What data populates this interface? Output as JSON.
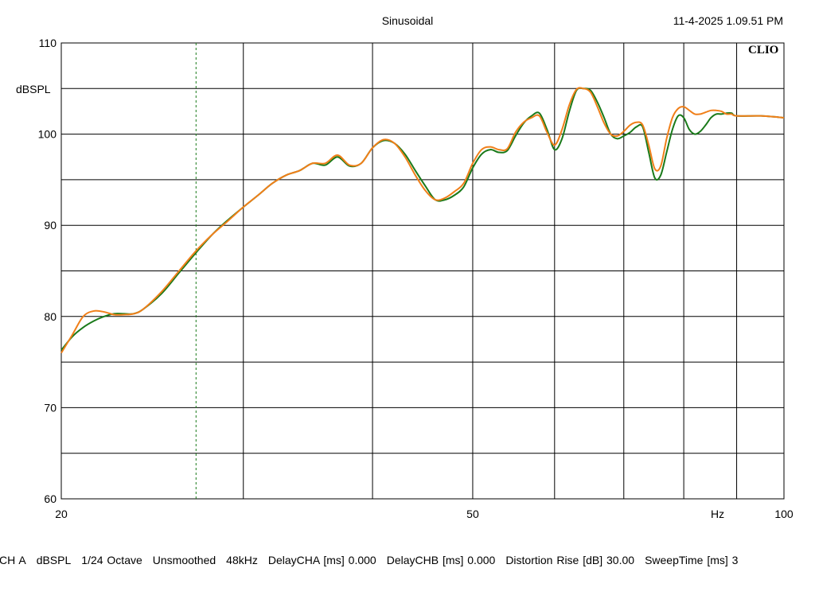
{
  "header": {
    "title": "Sinusoidal",
    "timestamp": "11-4-2025 1.09.51 PM"
  },
  "logo": "CLIO",
  "chart_data": {
    "type": "line",
    "title": "Sinusoidal",
    "ylabel": "dBSPL",
    "xlabel": "Hz",
    "x_scale": "log",
    "xlim": [
      20,
      100
    ],
    "ylim": [
      60,
      110
    ],
    "y_ticks": [
      "110",
      "100",
      "90",
      "80",
      "70",
      "60"
    ],
    "x_ticks": [
      "20",
      "50",
      "100"
    ],
    "x_unit_label": "Hz",
    "grid": true,
    "marker_x": 27,
    "series": [
      {
        "color": "#1a7a1a",
        "points": [
          [
            20,
            76.3
          ],
          [
            20.5,
            77.8
          ],
          [
            21,
            78.8
          ],
          [
            21.5,
            79.5
          ],
          [
            22,
            80.0
          ],
          [
            22.5,
            80.3
          ],
          [
            23,
            80.3
          ],
          [
            23.5,
            80.3
          ],
          [
            24,
            80.8
          ],
          [
            25,
            82.5
          ],
          [
            26,
            84.8
          ],
          [
            27,
            87.0
          ],
          [
            28,
            89.0
          ],
          [
            29,
            90.6
          ],
          [
            30,
            92.0
          ],
          [
            31,
            93.3
          ],
          [
            32,
            94.6
          ],
          [
            33,
            95.5
          ],
          [
            34,
            96.0
          ],
          [
            35,
            96.8
          ],
          [
            36,
            96.6
          ],
          [
            37,
            97.5
          ],
          [
            38,
            96.5
          ],
          [
            39,
            96.8
          ],
          [
            40,
            98.5
          ],
          [
            41,
            99.3
          ],
          [
            42,
            99.0
          ],
          [
            43,
            97.8
          ],
          [
            44,
            96.0
          ],
          [
            45,
            94.3
          ],
          [
            46,
            92.8
          ],
          [
            47,
            92.8
          ],
          [
            48,
            93.3
          ],
          [
            49,
            94.2
          ],
          [
            50,
            96.3
          ],
          [
            51,
            97.8
          ],
          [
            52,
            98.3
          ],
          [
            53,
            98.0
          ],
          [
            54,
            98.2
          ],
          [
            55,
            99.8
          ],
          [
            56,
            101.2
          ],
          [
            57,
            102.0
          ],
          [
            58,
            102.3
          ],
          [
            59,
            100.5
          ],
          [
            60,
            98.3
          ],
          [
            61,
            99.5
          ],
          [
            62,
            102.5
          ],
          [
            63,
            104.8
          ],
          [
            64,
            105.0
          ],
          [
            65,
            104.8
          ],
          [
            66,
            103.5
          ],
          [
            67,
            101.8
          ],
          [
            68,
            100.0
          ],
          [
            69,
            99.5
          ],
          [
            70,
            99.8
          ],
          [
            71,
            100.2
          ],
          [
            72,
            100.8
          ],
          [
            73,
            100.8
          ],
          [
            74,
            98.0
          ],
          [
            75,
            95.2
          ],
          [
            76,
            95.5
          ],
          [
            77,
            98.0
          ],
          [
            78,
            100.5
          ],
          [
            79,
            102.0
          ],
          [
            80,
            101.8
          ],
          [
            81,
            100.5
          ],
          [
            82,
            100.0
          ],
          [
            83,
            100.3
          ],
          [
            84,
            101.0
          ],
          [
            85,
            101.8
          ],
          [
            86,
            102.2
          ],
          [
            87,
            102.2
          ],
          [
            88,
            102.3
          ],
          [
            89,
            102.3
          ],
          [
            90,
            102.0
          ],
          [
            95,
            102.0
          ],
          [
            100,
            101.8
          ]
        ]
      },
      {
        "color": "#f07f19",
        "points": [
          [
            20,
            76.0
          ],
          [
            20.5,
            78.0
          ],
          [
            21,
            80.0
          ],
          [
            21.5,
            80.6
          ],
          [
            22,
            80.5
          ],
          [
            22.5,
            80.2
          ],
          [
            23,
            80.2
          ],
          [
            23.5,
            80.3
          ],
          [
            24,
            80.8
          ],
          [
            25,
            82.7
          ],
          [
            26,
            85.0
          ],
          [
            27,
            87.2
          ],
          [
            28,
            89.0
          ],
          [
            29,
            90.5
          ],
          [
            30,
            92.0
          ],
          [
            31,
            93.3
          ],
          [
            32,
            94.6
          ],
          [
            33,
            95.5
          ],
          [
            34,
            96.0
          ],
          [
            35,
            96.8
          ],
          [
            36,
            96.8
          ],
          [
            37,
            97.7
          ],
          [
            38,
            96.6
          ],
          [
            39,
            96.8
          ],
          [
            40,
            98.5
          ],
          [
            41,
            99.4
          ],
          [
            42,
            99.0
          ],
          [
            43,
            97.5
          ],
          [
            44,
            95.5
          ],
          [
            45,
            93.8
          ],
          [
            46,
            92.8
          ],
          [
            47,
            93.0
          ],
          [
            48,
            93.7
          ],
          [
            49,
            94.6
          ],
          [
            50,
            96.8
          ],
          [
            51,
            98.3
          ],
          [
            52,
            98.6
          ],
          [
            53,
            98.3
          ],
          [
            54,
            98.4
          ],
          [
            55,
            100.2
          ],
          [
            56,
            101.3
          ],
          [
            57,
            101.8
          ],
          [
            58,
            102.0
          ],
          [
            59,
            100.2
          ],
          [
            60,
            98.8
          ],
          [
            61,
            100.5
          ],
          [
            62,
            103.2
          ],
          [
            63,
            104.9
          ],
          [
            64,
            105.0
          ],
          [
            65,
            104.6
          ],
          [
            66,
            103.0
          ],
          [
            67,
            101.2
          ],
          [
            68,
            100.0
          ],
          [
            69,
            99.8
          ],
          [
            70,
            100.3
          ],
          [
            71,
            101.0
          ],
          [
            72,
            101.3
          ],
          [
            73,
            101.0
          ],
          [
            74,
            98.8
          ],
          [
            75,
            96.2
          ],
          [
            76,
            96.5
          ],
          [
            77,
            99.5
          ],
          [
            78,
            101.8
          ],
          [
            79,
            102.8
          ],
          [
            80,
            103.0
          ],
          [
            81,
            102.6
          ],
          [
            82,
            102.2
          ],
          [
            83,
            102.2
          ],
          [
            84,
            102.4
          ],
          [
            85,
            102.6
          ],
          [
            86,
            102.6
          ],
          [
            87,
            102.5
          ],
          [
            88,
            102.2
          ],
          [
            89,
            102.2
          ],
          [
            90,
            102.0
          ],
          [
            95,
            102.0
          ],
          [
            100,
            101.8
          ]
        ]
      }
    ]
  },
  "footer": {
    "items": [
      "CH A",
      "dBSPL",
      "1/24 Octave",
      "Unsmoothed",
      "48kHz",
      "DelayCHA [ms] 0.000",
      "DelayCHB [ms] 0.000",
      "Distortion Rise [dB] 30.00",
      "SweepTime [ms] 3"
    ]
  }
}
